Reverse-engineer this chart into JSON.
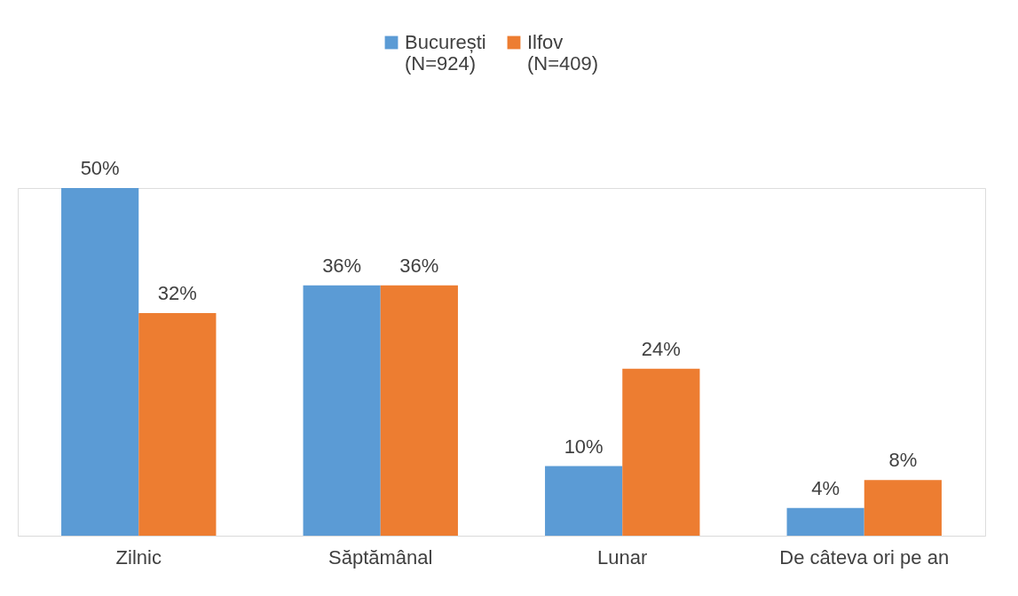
{
  "chart_data": {
    "type": "bar",
    "categories": [
      "Zilnic",
      "Săptămânal",
      "Lunar",
      "De câteva ori pe an"
    ],
    "series": [
      {
        "name": "București\n(N=924)",
        "color": "#5b9bd5",
        "values": [
          50,
          36,
          10,
          4
        ],
        "value_labels": [
          "50%",
          "36%",
          "10%",
          "4%"
        ]
      },
      {
        "name": "Ilfov\n(N=409)",
        "color": "#ed7d31",
        "values": [
          32,
          36,
          24,
          8
        ],
        "value_labels": [
          "32%",
          "36%",
          "24%",
          "8%"
        ]
      }
    ],
    "legend": "top"
  }
}
